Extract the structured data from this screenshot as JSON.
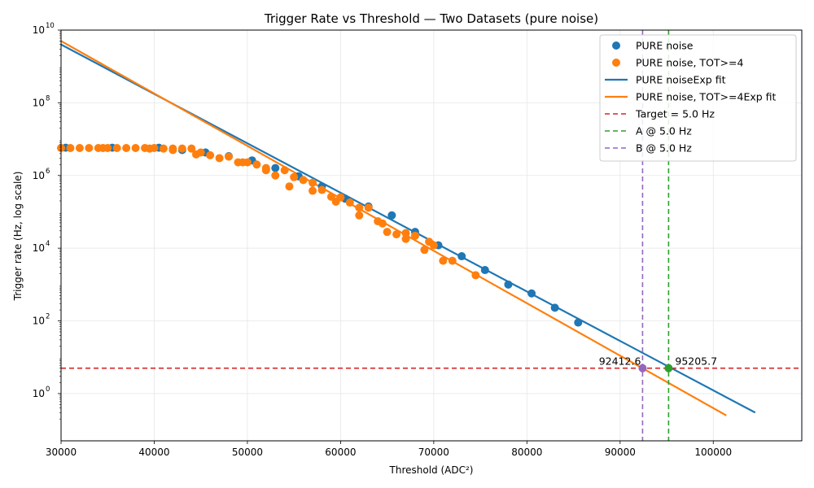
{
  "chart_data": {
    "type": "scatter",
    "title": "Trigger Rate vs Threshold — Two Datasets (pure noise)",
    "xlabel": "Threshold (ADC²)",
    "ylabel": "Trigger rate (Hz, log scale)",
    "xlim": [
      30000,
      109500
    ],
    "ylim_log10": [
      -1.3,
      10
    ],
    "y_scale": "log",
    "x_ticks": [
      30000,
      40000,
      50000,
      60000,
      70000,
      80000,
      90000,
      100000
    ],
    "x_tick_labels": [
      "30000",
      "40000",
      "50000",
      "60000",
      "70000",
      "80000",
      "90000",
      "100000"
    ],
    "y_ticks_exp": [
      0,
      2,
      4,
      6,
      8,
      10
    ],
    "y_tick_labels": [
      "10",
      "10",
      "10",
      "10",
      "10",
      "10"
    ],
    "y_tick_exponents": [
      "0",
      "2",
      "4",
      "6",
      "8",
      "10"
    ],
    "grid": true,
    "legend_position": "top-right",
    "series": [
      {
        "name": "PURE noise",
        "kind": "scatter",
        "color": "#1f77b4",
        "points": [
          [
            30500,
            5800000
          ],
          [
            35500,
            5800000
          ],
          [
            40500,
            5800000
          ],
          [
            43000,
            5000000
          ],
          [
            45500,
            4300000
          ],
          [
            48000,
            3400000
          ],
          [
            50500,
            2600000
          ],
          [
            53000,
            1600000
          ],
          [
            55500,
            950000
          ],
          [
            58000,
            500000
          ],
          [
            60500,
            230000
          ],
          [
            63000,
            140000
          ],
          [
            65500,
            80000
          ],
          [
            68000,
            28000
          ],
          [
            70500,
            12000
          ],
          [
            73000,
            6000
          ],
          [
            75500,
            2500
          ],
          [
            78000,
            1000
          ],
          [
            80500,
            570
          ],
          [
            83000,
            230
          ],
          [
            85500,
            90
          ]
        ]
      },
      {
        "name": "PURE noise, TOT>=4",
        "kind": "scatter",
        "color": "#ff7f0e",
        "points": [
          [
            30000,
            5700000
          ],
          [
            31000,
            5700000
          ],
          [
            32000,
            5700000
          ],
          [
            33000,
            5700000
          ],
          [
            34000,
            5700000
          ],
          [
            34500,
            5700000
          ],
          [
            35000,
            5700000
          ],
          [
            36000,
            5700000
          ],
          [
            37000,
            5700000
          ],
          [
            38000,
            5700000
          ],
          [
            39000,
            5700000
          ],
          [
            39500,
            5500000
          ],
          [
            40000,
            5700000
          ],
          [
            41000,
            5500000
          ],
          [
            42000,
            5000000
          ],
          [
            42000,
            5500000
          ],
          [
            43000,
            5500000
          ],
          [
            44000,
            5500000
          ],
          [
            44500,
            3800000
          ],
          [
            45000,
            4300000
          ],
          [
            46000,
            3600000
          ],
          [
            47000,
            3000000
          ],
          [
            48000,
            3300000
          ],
          [
            49000,
            2300000
          ],
          [
            49500,
            2300000
          ],
          [
            50000,
            2300000
          ],
          [
            51000,
            2000000
          ],
          [
            52000,
            1400000
          ],
          [
            52000,
            1600000
          ],
          [
            53000,
            1000000
          ],
          [
            54000,
            1400000
          ],
          [
            54500,
            500000
          ],
          [
            55000,
            900000
          ],
          [
            56000,
            750000
          ],
          [
            57000,
            630000
          ],
          [
            57000,
            380000
          ],
          [
            58000,
            400000
          ],
          [
            59000,
            260000
          ],
          [
            59500,
            190000
          ],
          [
            60000,
            250000
          ],
          [
            61000,
            180000
          ],
          [
            62000,
            80000
          ],
          [
            62000,
            130000
          ],
          [
            63000,
            130000
          ],
          [
            64000,
            55000
          ],
          [
            64500,
            48000
          ],
          [
            65000,
            28000
          ],
          [
            66000,
            24000
          ],
          [
            67000,
            18000
          ],
          [
            67000,
            26000
          ],
          [
            68000,
            22000
          ],
          [
            69000,
            9000
          ],
          [
            69500,
            15000
          ],
          [
            70000,
            12000
          ],
          [
            71000,
            4500
          ],
          [
            72000,
            4500
          ],
          [
            74500,
            1800
          ]
        ]
      },
      {
        "name": "PURE noiseExp fit",
        "kind": "line",
        "color": "#1f77b4",
        "x": [
          30000,
          104500
        ],
        "y": [
          4000000000,
          0.3
        ]
      },
      {
        "name": "PURE noise, TOT>=4Exp fit",
        "kind": "line",
        "color": "#ff7f0e",
        "x": [
          30000,
          101400
        ],
        "y": [
          5000000000,
          0.25
        ]
      },
      {
        "name": "Target = 5.0 Hz",
        "kind": "hline",
        "color": "#d62728",
        "y": 5.0
      },
      {
        "name": "A @ 5.0 Hz",
        "kind": "vline",
        "color": "#2ca02c",
        "x": 95205.7
      },
      {
        "name": "B @ 5.0 Hz",
        "kind": "vline",
        "color": "#9467bd",
        "x": 92412.6
      }
    ],
    "markers": [
      {
        "x": 95205.7,
        "y": 5.0,
        "color": "#2ca02c"
      },
      {
        "x": 92412.6,
        "y": 5.0,
        "color": "#9467bd"
      }
    ],
    "annotations": [
      {
        "text": "95205.7",
        "x": 95205.7,
        "y": 5.0,
        "side": "right"
      },
      {
        "text": "92412.6",
        "x": 92412.6,
        "y": 5.0,
        "side": "left"
      }
    ]
  }
}
